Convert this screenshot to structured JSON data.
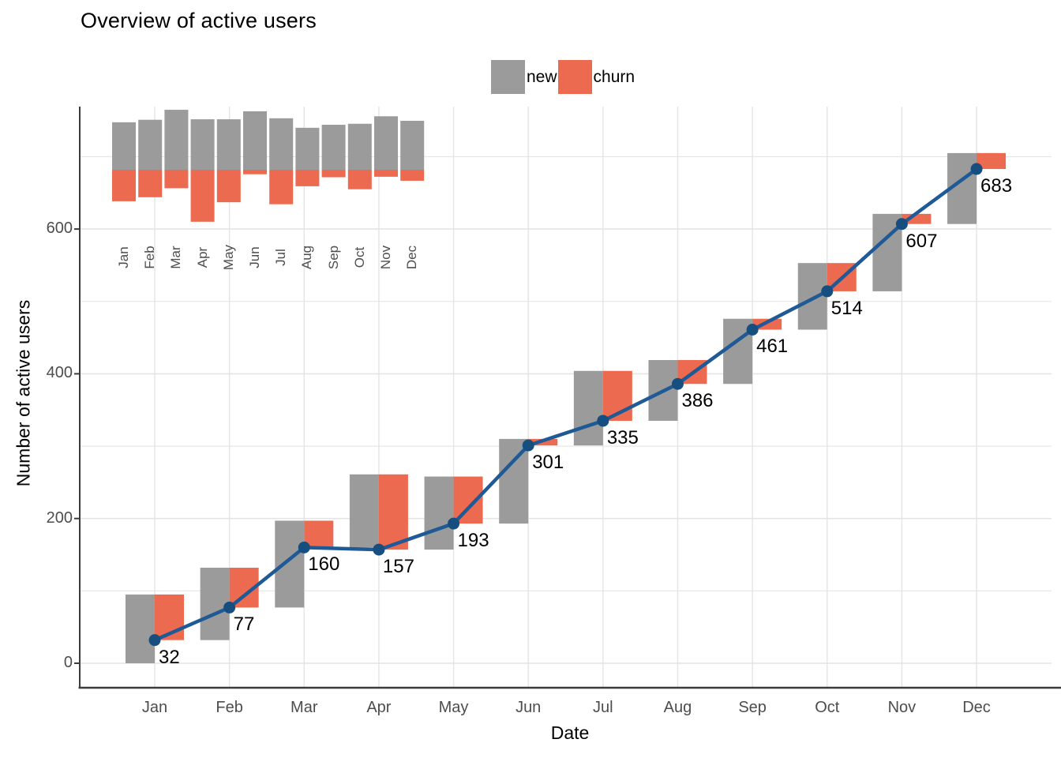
{
  "title": "Overview of active users",
  "legend": {
    "items": [
      {
        "label": "new",
        "color": "#9B9B9B"
      },
      {
        "label": "churn",
        "color": "#EB6A50"
      }
    ]
  },
  "axes": {
    "x_title": "Date",
    "y_title": "Number of active users",
    "y_tick_labels": [
      "0",
      "200",
      "400",
      "600"
    ]
  },
  "colors": {
    "new_bar": "#9B9B9B",
    "churn_bar": "#EB6A50",
    "line": "#1F5A96",
    "point": "#174E80",
    "grid": "#E4E4E4",
    "axis_line": "#3C3C3C",
    "tick_text": "#4D4D4D",
    "value_text": "#000000"
  },
  "chart_data": {
    "type": "combo (waterfall bars + line with points, plus inset bar chart)",
    "title": "Overview of active users",
    "xlabel": "Date",
    "ylabel": "Number of active users",
    "categories": [
      "Jan",
      "Feb",
      "Mar",
      "Apr",
      "May",
      "Jun",
      "Jul",
      "Aug",
      "Sep",
      "Oct",
      "Nov",
      "Dec"
    ],
    "y_ticks": [
      0,
      200,
      400,
      600
    ],
    "y_minor_gridlines": [
      100,
      300,
      500,
      700
    ],
    "ylim": [
      0,
      770
    ],
    "grid": true,
    "legend_position": "top-center",
    "series": [
      {
        "name": "active users",
        "type": "line+point",
        "color": "#1F5A96",
        "point_color": "#174E80",
        "values": [
          32,
          77,
          160,
          157,
          193,
          301,
          335,
          386,
          461,
          514,
          607,
          683
        ],
        "point_labels_shown": true
      },
      {
        "name": "new",
        "type": "bar",
        "color": "#9B9B9B",
        "values": [
          95,
          100,
          120,
          101,
          101,
          117,
          103,
          84,
          90,
          92,
          107,
          98
        ],
        "note": "waterfall segment drawn upward from previous cumulative value"
      },
      {
        "name": "churn",
        "type": "bar",
        "color": "#EB6A50",
        "values": [
          63,
          55,
          37,
          104,
          65,
          9,
          69,
          33,
          15,
          39,
          14,
          22
        ],
        "note": "waterfall segment drawn downward from (previous + new) to current cumulative value"
      }
    ],
    "inset": {
      "description": "mini bar chart top-left: monthly new users upward (grey), churn downward (red) from a shared baseline",
      "categories": [
        "Jan",
        "Feb",
        "Mar",
        "Apr",
        "May",
        "Jun",
        "Jul",
        "Aug",
        "Sep",
        "Oct",
        "Nov",
        "Dec"
      ],
      "up_series": "new",
      "down_series": "churn",
      "tick_label_rotation_deg": 90
    }
  }
}
